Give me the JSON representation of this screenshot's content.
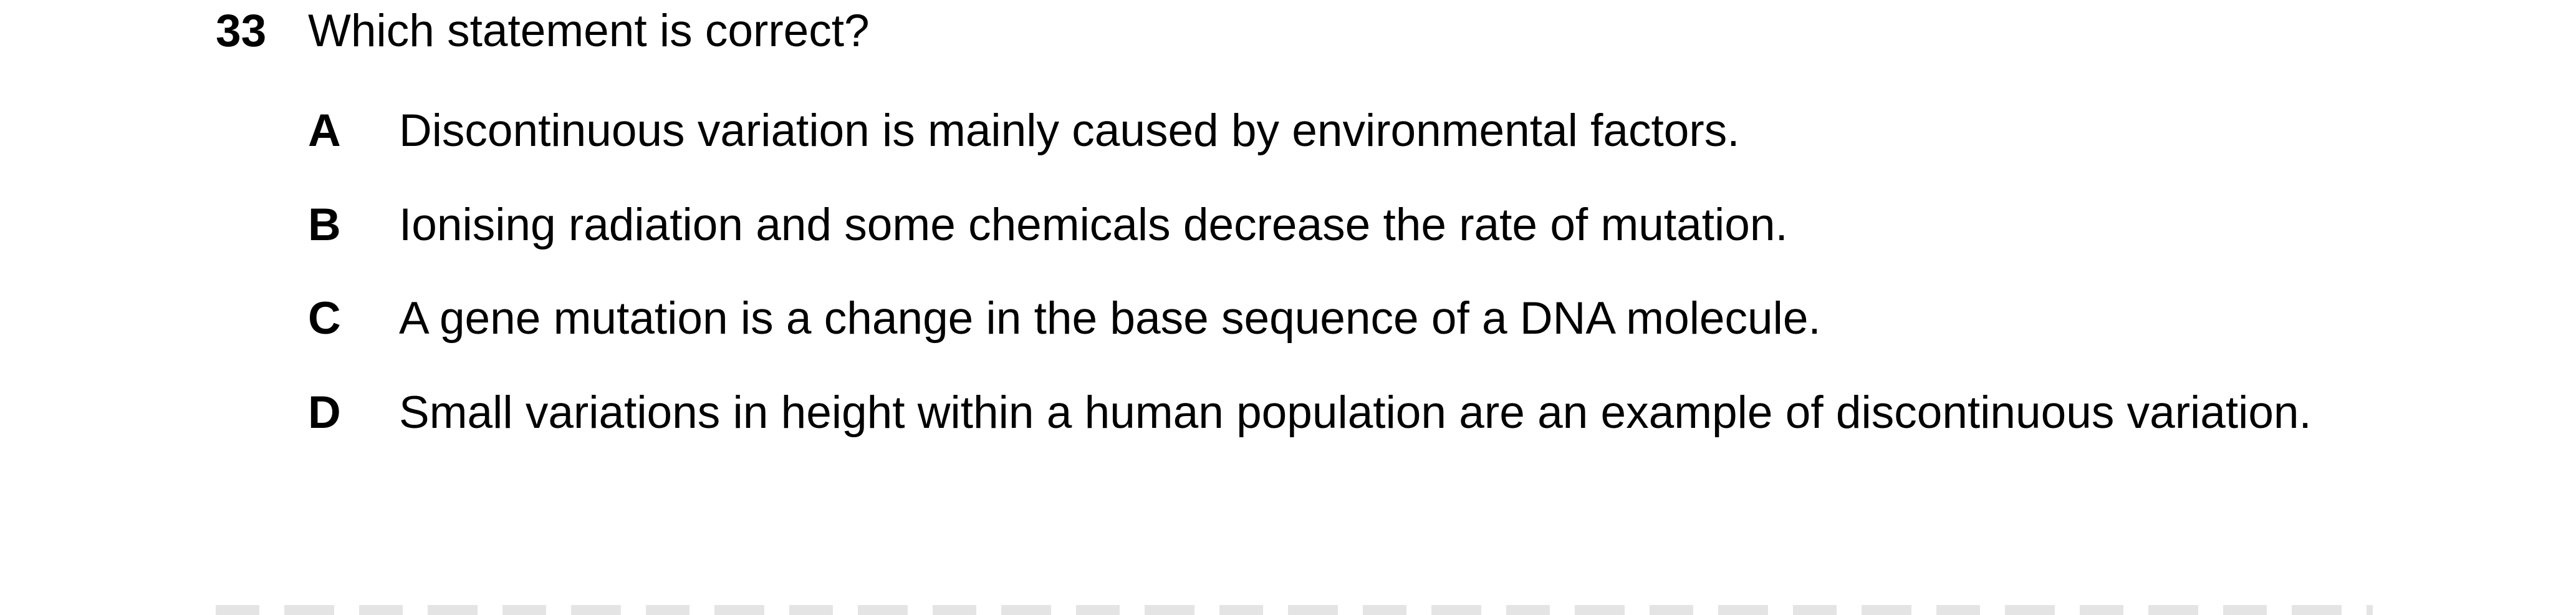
{
  "question": {
    "number": "33",
    "stem": "Which statement is correct?",
    "options": [
      {
        "letter": "A",
        "text": "Discontinuous variation is mainly caused by environmental factors."
      },
      {
        "letter": "B",
        "text": "Ionising radiation and some chemicals decrease the rate of mutation."
      },
      {
        "letter": "C",
        "text": "A gene mutation is a change in the base sequence of a DNA molecule."
      },
      {
        "letter": "D",
        "text": "Small variations in height within a human population are an example of discontinuous variation."
      }
    ]
  }
}
